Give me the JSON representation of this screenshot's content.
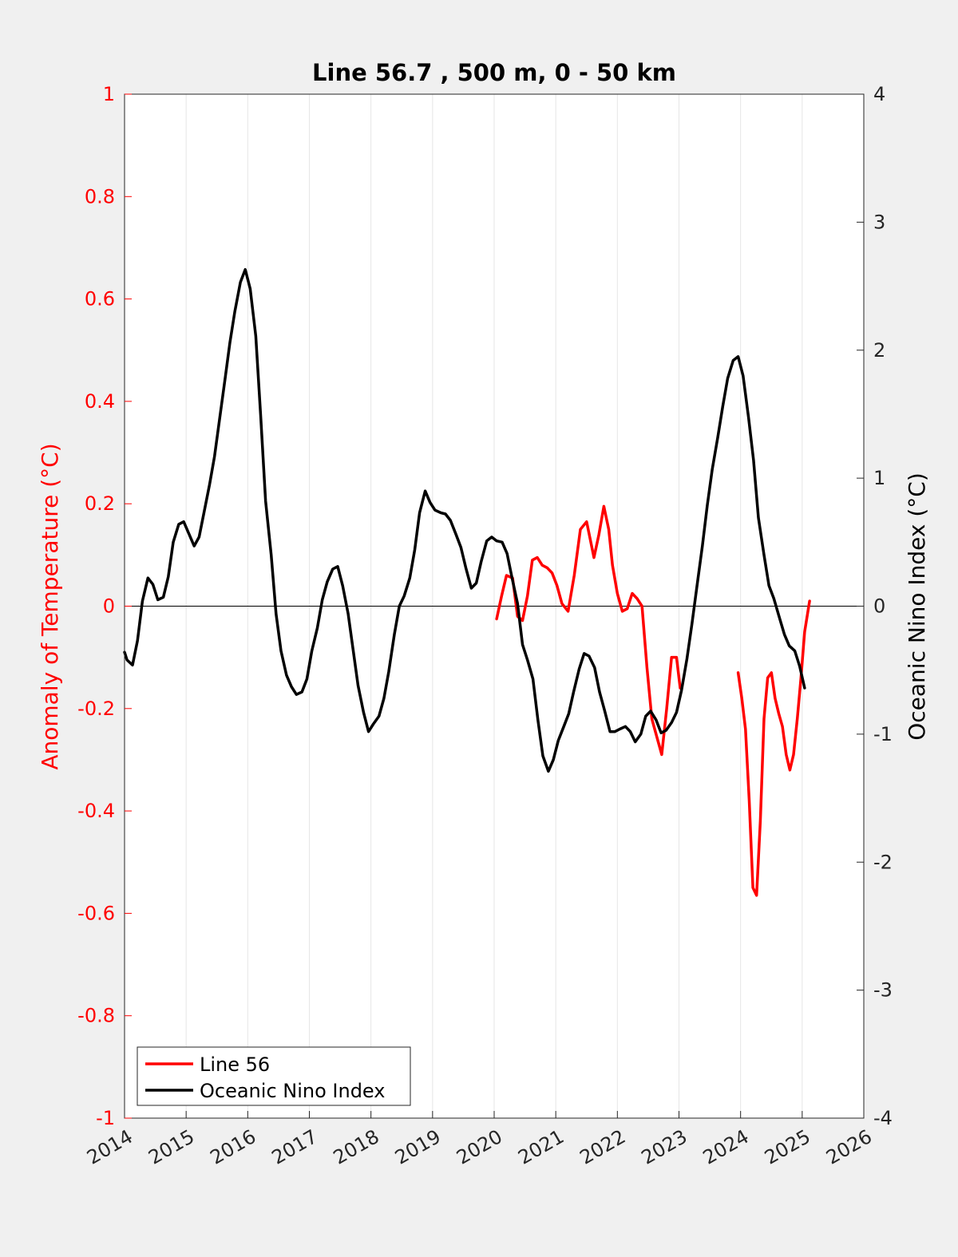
{
  "chart_data": {
    "type": "line",
    "title": "Line 56.7 , 500 m, 0 - 50 km",
    "xlabel": "",
    "ylabel_left": "Anomaly of Temperature (°C)",
    "ylabel_right": "Oceanic Nino Index (°C)",
    "xlim": [
      2014,
      2026
    ],
    "ylim_left": [
      -1,
      1
    ],
    "ylim_right": [
      -4,
      4
    ],
    "x_ticks": [
      "2014",
      "2015",
      "2016",
      "2017",
      "2018",
      "2019",
      "2020",
      "2021",
      "2022",
      "2023",
      "2024",
      "2025",
      "2026"
    ],
    "y_ticks_left": [
      "1",
      "0.8",
      "0.6",
      "0.4",
      "0.2",
      "0",
      "-0.2",
      "-0.4",
      "-0.6",
      "-0.8",
      "-1"
    ],
    "y_ticks_right": [
      "4",
      "3",
      "2",
      "1",
      "0",
      "-1",
      "-2",
      "-3",
      "-4"
    ],
    "grid": "vertical",
    "zero_line": true,
    "legend_position": "bottom-left",
    "series": [
      {
        "name": "Line 56",
        "color": "#ff0000",
        "axis": "left",
        "segments": [
          {
            "x": [
              2020.04,
              2020.12,
              2020.2,
              2020.3,
              2020.38,
              2020.46,
              2020.54,
              2020.62,
              2020.7,
              2020.78,
              2020.86,
              2020.94,
              2021.02,
              2021.1,
              2021.2,
              2021.3,
              2021.4,
              2021.5,
              2021.56,
              2021.62,
              2021.7,
              2021.78,
              2021.86,
              2021.92,
              2022.0,
              2022.08,
              2022.16,
              2022.24,
              2022.32,
              2022.4,
              2022.48,
              2022.56,
              2022.64,
              2022.72,
              2022.8,
              2022.88,
              2022.96,
              2023.02
            ],
            "y": [
              -0.025,
              0.02,
              0.06,
              0.055,
              -0.02,
              -0.028,
              0.02,
              0.09,
              0.095,
              0.08,
              0.075,
              0.065,
              0.04,
              0.005,
              -0.01,
              0.06,
              0.15,
              0.165,
              0.13,
              0.095,
              0.14,
              0.195,
              0.15,
              0.08,
              0.025,
              -0.01,
              -0.005,
              0.025,
              0.015,
              0.0,
              -0.12,
              -0.22,
              -0.255,
              -0.29,
              -0.2,
              -0.1,
              -0.1,
              -0.16
            ]
          },
          {
            "x": [
              2023.96,
              2024.02,
              2024.08,
              2024.14,
              2024.2,
              2024.26,
              2024.32,
              2024.38,
              2024.44,
              2024.5,
              2024.56,
              2024.62,
              2024.68,
              2024.74,
              2024.8,
              2024.86,
              2024.92,
              2024.98,
              2025.04,
              2025.12
            ],
            "y": [
              -0.13,
              -0.18,
              -0.24,
              -0.38,
              -0.55,
              -0.565,
              -0.42,
              -0.22,
              -0.14,
              -0.13,
              -0.18,
              -0.21,
              -0.235,
              -0.29,
              -0.32,
              -0.29,
              -0.22,
              -0.14,
              -0.05,
              0.01
            ]
          }
        ]
      },
      {
        "name": "Oceanic Nino Index",
        "color": "#000000",
        "axis": "right",
        "segments": [
          {
            "x": [
              2014.0,
              2014.04,
              2014.13,
              2014.21,
              2014.29,
              2014.38,
              2014.46,
              2014.54,
              2014.63,
              2014.71,
              2014.79,
              2014.88,
              2014.96,
              2015.04,
              2015.13,
              2015.21,
              2015.29,
              2015.38,
              2015.46,
              2015.54,
              2015.63,
              2015.71,
              2015.79,
              2015.88,
              2015.96,
              2016.04,
              2016.13,
              2016.21,
              2016.29,
              2016.38,
              2016.46,
              2016.54,
              2016.63,
              2016.71,
              2016.79,
              2016.88,
              2016.96,
              2017.04,
              2017.13,
              2017.21,
              2017.29,
              2017.38,
              2017.46,
              2017.54,
              2017.63,
              2017.71,
              2017.79,
              2017.88,
              2017.96,
              2018.04,
              2018.13,
              2018.21,
              2018.29,
              2018.38,
              2018.46,
              2018.54,
              2018.63,
              2018.71,
              2018.79,
              2018.88,
              2018.96,
              2019.04,
              2019.13,
              2019.21,
              2019.29,
              2019.38,
              2019.46,
              2019.54,
              2019.63,
              2019.71,
              2019.79,
              2019.88,
              2019.96,
              2020.04,
              2020.13,
              2020.21,
              2020.29,
              2020.38,
              2020.46,
              2020.54,
              2020.63,
              2020.71,
              2020.79,
              2020.88,
              2020.96,
              2021.04,
              2021.13,
              2021.21,
              2021.29,
              2021.38,
              2021.46,
              2021.54,
              2021.63,
              2021.71,
              2021.79,
              2021.88,
              2021.96,
              2022.04,
              2022.13,
              2022.21,
              2022.29,
              2022.38,
              2022.46,
              2022.54,
              2022.63,
              2022.71,
              2022.79,
              2022.88,
              2022.96,
              2023.04,
              2023.13,
              2023.21,
              2023.29,
              2023.38,
              2023.46,
              2023.54,
              2023.63,
              2023.71,
              2023.79,
              2023.88,
              2023.96,
              2024.04,
              2024.13,
              2024.21,
              2024.29,
              2024.38,
              2024.46,
              2024.54,
              2024.63,
              2024.71,
              2024.79,
              2024.88,
              2024.96,
              2025.04
            ],
            "y": [
              -0.36,
              -0.42,
              -0.46,
              -0.27,
              0.04,
              0.22,
              0.17,
              0.05,
              0.07,
              0.23,
              0.5,
              0.64,
              0.66,
              0.57,
              0.47,
              0.54,
              0.73,
              0.95,
              1.17,
              1.45,
              1.77,
              2.06,
              2.3,
              2.53,
              2.63,
              2.48,
              2.11,
              1.49,
              0.82,
              0.4,
              -0.06,
              -0.35,
              -0.54,
              -0.63,
              -0.69,
              -0.67,
              -0.57,
              -0.35,
              -0.17,
              0.05,
              0.19,
              0.29,
              0.31,
              0.16,
              -0.06,
              -0.34,
              -0.62,
              -0.83,
              -0.98,
              -0.92,
              -0.86,
              -0.72,
              -0.51,
              -0.22,
              0.0,
              0.08,
              0.22,
              0.44,
              0.73,
              0.9,
              0.81,
              0.75,
              0.73,
              0.72,
              0.67,
              0.56,
              0.46,
              0.3,
              0.14,
              0.18,
              0.35,
              0.51,
              0.54,
              0.51,
              0.5,
              0.41,
              0.22,
              0.02,
              -0.3,
              -0.42,
              -0.57,
              -0.89,
              -1.17,
              -1.29,
              -1.2,
              -1.05,
              -0.94,
              -0.84,
              -0.67,
              -0.49,
              -0.37,
              -0.39,
              -0.48,
              -0.67,
              -0.81,
              -0.98,
              -0.98,
              -0.96,
              -0.94,
              -0.98,
              -1.06,
              -1.0,
              -0.86,
              -0.82,
              -0.89,
              -0.99,
              -0.97,
              -0.91,
              -0.83,
              -0.66,
              -0.41,
              -0.14,
              0.15,
              0.47,
              0.79,
              1.07,
              1.32,
              1.56,
              1.78,
              1.92,
              1.95,
              1.8,
              1.47,
              1.14,
              0.69,
              0.4,
              0.16,
              0.06,
              -0.09,
              -0.22,
              -0.31,
              -0.35,
              -0.47,
              -0.64
            ]
          }
        ]
      }
    ]
  }
}
